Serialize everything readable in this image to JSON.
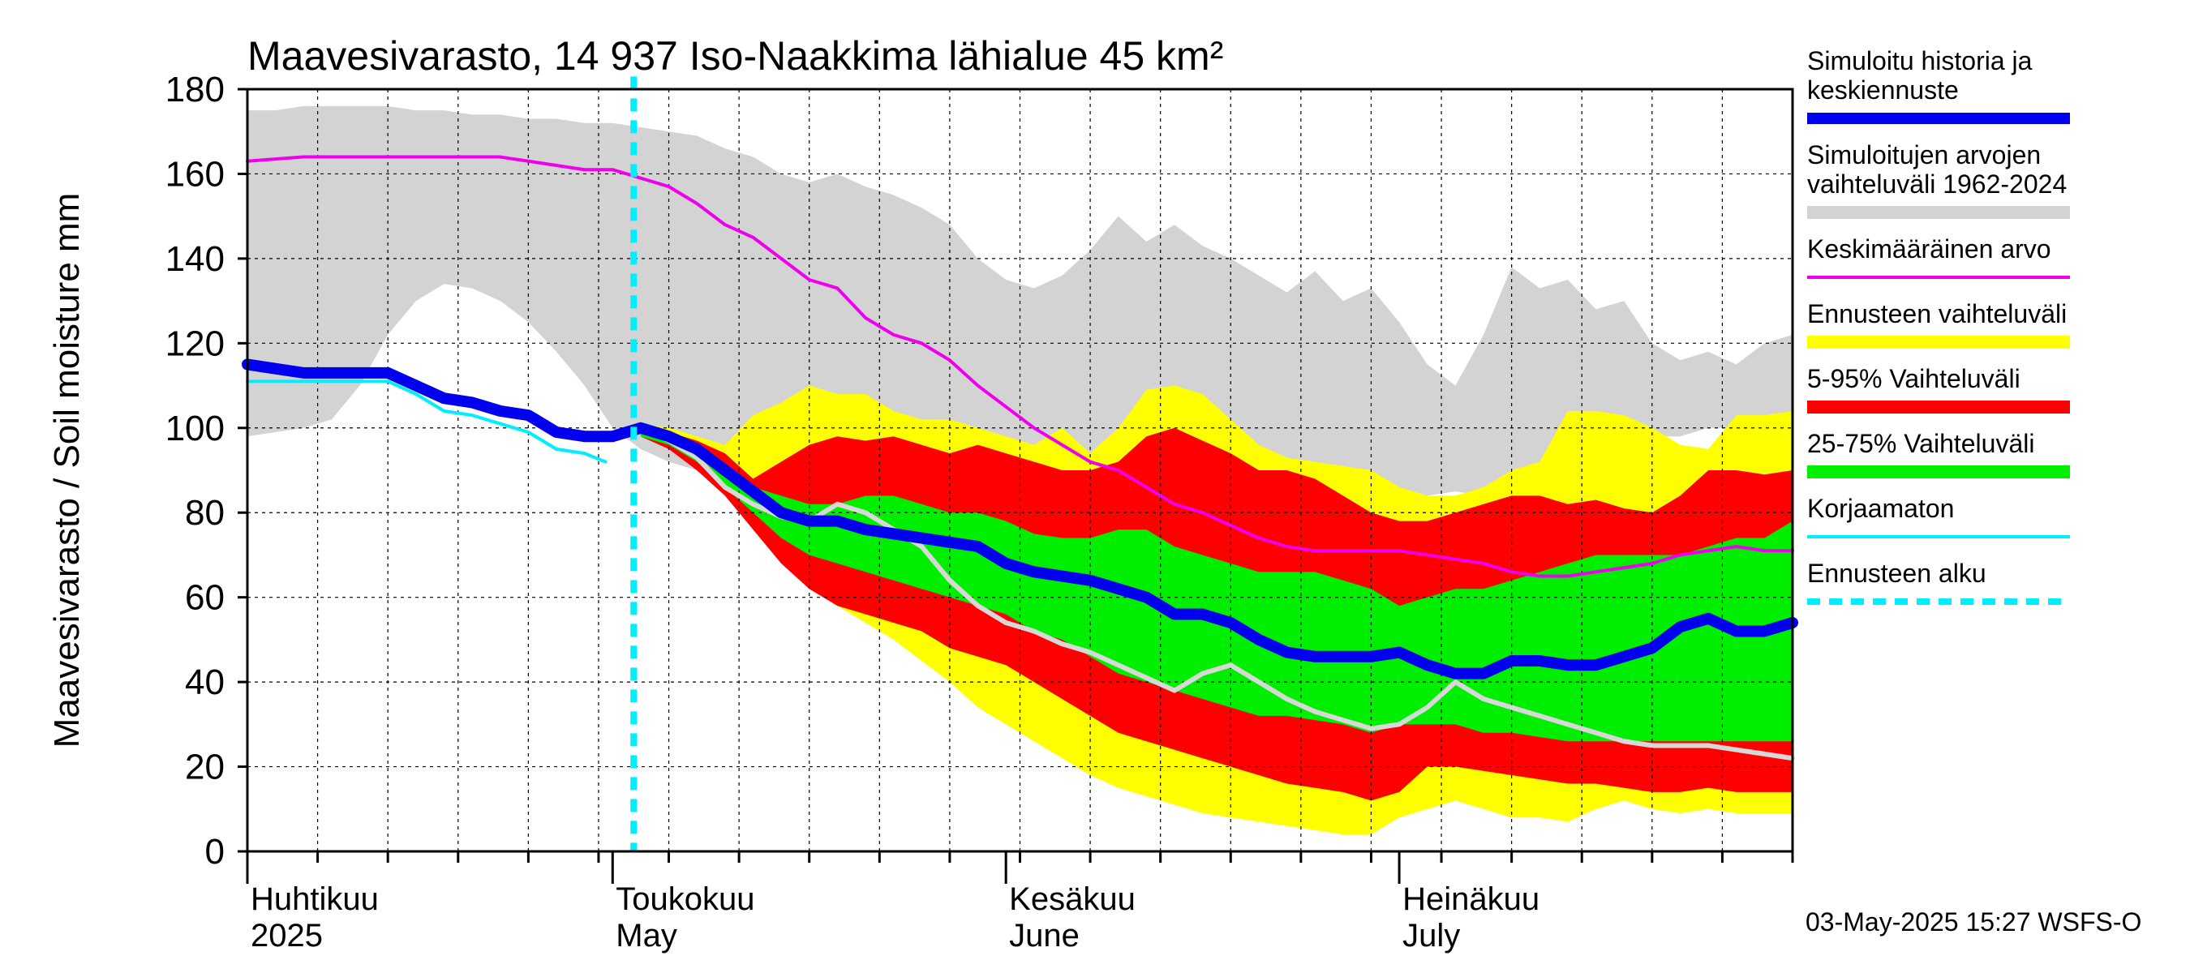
{
  "chart_data": {
    "type": "area",
    "title": "Maavesivarasto, 14 937 Iso-Naakkima lähialue 45 km²",
    "ylabel": "Maavesivarasto / Soil moisture   mm",
    "xlabel": "",
    "ylim": [
      0,
      180
    ],
    "xlim_days": [
      0,
      110
    ],
    "yticks": [
      "0",
      "20",
      "40",
      "60",
      "80",
      "100",
      "120",
      "140",
      "160",
      "180"
    ],
    "months": [
      {
        "fi": "Huhtikuu",
        "en": "2025",
        "day": 0
      },
      {
        "fi": "Toukokuu",
        "en": "May",
        "day": 26
      },
      {
        "fi": "Kesäkuu",
        "en": "June",
        "day": 54
      },
      {
        "fi": "Heinäkuu",
        "en": "July",
        "day": 82
      }
    ],
    "forecast_start_day": 27.5,
    "colors": {
      "history_range": "#d3d3d3",
      "forecast_range": "#ffff00",
      "p5_95": "#ff0000",
      "p25_75": "#00ee00",
      "simulated": "#0000ee",
      "mean": "#ee00ee",
      "uncorrected": "#00eeff",
      "forecast_start": "#00eeff",
      "gray_line": "#d8d8d8"
    },
    "series": {
      "history_range": {
        "x": [
          0,
          2,
          4,
          6,
          8,
          10,
          12,
          14,
          16,
          18,
          20,
          22,
          24,
          26,
          28,
          30,
          32,
          34,
          36,
          38,
          40,
          42,
          44,
          46,
          48,
          50,
          52,
          54,
          56,
          58,
          60,
          62,
          64,
          66,
          68,
          70,
          72,
          74,
          76,
          78,
          80,
          82,
          84,
          86,
          88,
          90,
          92,
          94,
          96,
          98,
          100,
          102,
          104,
          106,
          108,
          110
        ],
        "upper": [
          175,
          175,
          176,
          176,
          176,
          176,
          175,
          175,
          174,
          174,
          173,
          173,
          172,
          172,
          171,
          170,
          169,
          166,
          164,
          160,
          158,
          160,
          157,
          155,
          152,
          148,
          140,
          135,
          133,
          136,
          142,
          150,
          144,
          148,
          143,
          140,
          136,
          132,
          137,
          130,
          133,
          125,
          115,
          110,
          122,
          138,
          133,
          135,
          128,
          130,
          120,
          116,
          118,
          115,
          120,
          122
        ],
        "lower": [
          98,
          99,
          100,
          102,
          110,
          122,
          130,
          134,
          133,
          130,
          125,
          118,
          110,
          100,
          95,
          92,
          90,
          88,
          90,
          87,
          88,
          89,
          88,
          88,
          87,
          86,
          84,
          83,
          82,
          84,
          85,
          86,
          84,
          84,
          83,
          82,
          80,
          80,
          80,
          80,
          80,
          82,
          84,
          85,
          84,
          85,
          86,
          88,
          90,
          94,
          98,
          98,
          100,
          100,
          100,
          100
        ]
      },
      "forecast_range": {
        "x": [
          28,
          30,
          32,
          34,
          36,
          38,
          40,
          42,
          44,
          46,
          48,
          50,
          52,
          54,
          56,
          58,
          60,
          62,
          64,
          66,
          68,
          70,
          72,
          74,
          76,
          78,
          80,
          82,
          84,
          86,
          88,
          90,
          92,
          94,
          96,
          98,
          100,
          102,
          104,
          106,
          108,
          110
        ],
        "upper": [
          101,
          100,
          98,
          96,
          103,
          106,
          110,
          108,
          108,
          104,
          102,
          102,
          100,
          98,
          96,
          100,
          94,
          100,
          109,
          110,
          108,
          102,
          96,
          93,
          92,
          91,
          90,
          86,
          84,
          84,
          86,
          90,
          92,
          104,
          104,
          103,
          100,
          96,
          95,
          103,
          103,
          104
        ],
        "lower": [
          98,
          96,
          92,
          86,
          78,
          70,
          62,
          58,
          54,
          50,
          45,
          40,
          34,
          30,
          26,
          22,
          18,
          15,
          13,
          11,
          9,
          8,
          7,
          6,
          5,
          4,
          4,
          8,
          10,
          12,
          10,
          8,
          8,
          7,
          10,
          12,
          10,
          9,
          10,
          9,
          9,
          9
        ]
      },
      "p5_95": {
        "x": [
          28,
          30,
          32,
          34,
          36,
          38,
          40,
          42,
          44,
          46,
          48,
          50,
          52,
          54,
          56,
          58,
          60,
          62,
          64,
          66,
          68,
          70,
          72,
          74,
          76,
          78,
          80,
          82,
          84,
          86,
          88,
          90,
          92,
          94,
          96,
          98,
          100,
          102,
          104,
          106,
          108,
          110
        ],
        "upper": [
          100,
          99,
          97,
          94,
          88,
          92,
          96,
          98,
          97,
          98,
          96,
          94,
          96,
          94,
          92,
          90,
          90,
          92,
          98,
          100,
          97,
          94,
          90,
          90,
          88,
          84,
          80,
          78,
          78,
          80,
          82,
          84,
          84,
          82,
          83,
          81,
          80,
          84,
          90,
          90,
          89,
          90
        ],
        "lower": [
          98,
          95,
          90,
          84,
          76,
          68,
          62,
          58,
          56,
          54,
          52,
          48,
          46,
          44,
          40,
          36,
          32,
          28,
          26,
          24,
          22,
          20,
          18,
          16,
          15,
          14,
          12,
          14,
          20,
          20,
          19,
          18,
          17,
          16,
          16,
          15,
          14,
          14,
          15,
          14,
          14,
          14
        ]
      },
      "p25_75": {
        "x": [
          28,
          30,
          32,
          34,
          36,
          38,
          40,
          42,
          44,
          46,
          48,
          50,
          52,
          54,
          56,
          58,
          60,
          62,
          64,
          66,
          68,
          70,
          72,
          74,
          76,
          78,
          80,
          82,
          84,
          86,
          88,
          90,
          92,
          94,
          96,
          98,
          100,
          102,
          104,
          106,
          108,
          110
        ],
        "upper": [
          100,
          98,
          95,
          90,
          86,
          84,
          82,
          82,
          84,
          84,
          82,
          80,
          80,
          78,
          75,
          74,
          74,
          76,
          76,
          72,
          70,
          68,
          66,
          66,
          66,
          64,
          62,
          58,
          60,
          62,
          62,
          64,
          66,
          68,
          70,
          70,
          70,
          70,
          72,
          74,
          74,
          78
        ],
        "lower": [
          98,
          96,
          92,
          86,
          80,
          74,
          70,
          68,
          66,
          64,
          62,
          60,
          58,
          56,
          52,
          50,
          46,
          42,
          40,
          38,
          36,
          34,
          32,
          32,
          31,
          30,
          28,
          30,
          30,
          30,
          28,
          28,
          27,
          26,
          26,
          26,
          26,
          26,
          26,
          26,
          26,
          26
        ]
      },
      "simulated": {
        "x": [
          0,
          2,
          4,
          6,
          8,
          10,
          12,
          14,
          16,
          18,
          20,
          22,
          24,
          26,
          28,
          30,
          32,
          34,
          36,
          38,
          40,
          42,
          44,
          46,
          48,
          50,
          52,
          54,
          56,
          58,
          60,
          62,
          64,
          66,
          68,
          70,
          72,
          74,
          76,
          78,
          80,
          82,
          84,
          86,
          88,
          90,
          92,
          94,
          96,
          98,
          100,
          102,
          104,
          106,
          108,
          110
        ],
        "values": [
          115,
          114,
          113,
          113,
          113,
          113,
          110,
          107,
          106,
          104,
          103,
          99,
          98,
          98,
          100,
          98,
          95,
          90,
          85,
          80,
          78,
          78,
          76,
          75,
          74,
          73,
          72,
          68,
          66,
          65,
          64,
          62,
          60,
          56,
          56,
          54,
          50,
          47,
          46,
          46,
          46,
          47,
          44,
          42,
          42,
          45,
          45,
          44,
          44,
          46,
          48,
          53,
          55,
          52,
          52,
          54
        ]
      },
      "mean": {
        "x": [
          0,
          2,
          4,
          6,
          8,
          10,
          12,
          14,
          16,
          18,
          20,
          22,
          24,
          26,
          28,
          30,
          32,
          34,
          36,
          38,
          40,
          42,
          44,
          46,
          48,
          50,
          52,
          54,
          56,
          58,
          60,
          62,
          64,
          66,
          68,
          70,
          72,
          74,
          76,
          78,
          80,
          82,
          84,
          86,
          88,
          90,
          92,
          94,
          96,
          98,
          100,
          102,
          104,
          106,
          108,
          110
        ],
        "values": [
          163,
          163.5,
          164,
          164,
          164,
          164,
          164,
          164,
          164,
          164,
          163,
          162,
          161,
          161,
          159,
          157,
          153,
          148,
          145,
          140,
          135,
          133,
          126,
          122,
          120,
          116,
          110,
          105,
          100,
          96,
          92,
          90,
          86,
          82,
          80,
          77,
          74,
          72,
          71,
          71,
          71,
          71,
          70,
          69,
          68,
          66,
          65,
          65,
          66,
          67,
          68,
          70,
          71,
          72,
          71,
          71
        ]
      },
      "uncorrected": {
        "x": [
          0,
          2,
          4,
          6,
          8,
          10,
          12,
          14,
          16,
          18,
          20,
          22,
          24,
          25.5
        ],
        "values": [
          111,
          111,
          111,
          111,
          111,
          111,
          108,
          104,
          103,
          101,
          99,
          95,
          94,
          92
        ]
      },
      "gray_line": {
        "x": [
          28,
          30,
          32,
          34,
          36,
          38,
          40,
          42,
          44,
          46,
          48,
          50,
          52,
          54,
          56,
          58,
          60,
          62,
          64,
          66,
          68,
          70,
          72,
          74,
          76,
          78,
          80,
          82,
          84,
          86,
          88,
          90,
          92,
          94,
          96,
          98,
          100,
          102,
          104,
          106,
          108,
          110
        ],
        "values": [
          100,
          97,
          93,
          86,
          82,
          79,
          78,
          82,
          80,
          76,
          72,
          64,
          58,
          54,
          52,
          49,
          47,
          44,
          41,
          38,
          42,
          44,
          40,
          36,
          33,
          31,
          29,
          30,
          34,
          40,
          36,
          34,
          32,
          30,
          28,
          26,
          25,
          25,
          25,
          24,
          23,
          22
        ]
      }
    },
    "legend": [
      {
        "label": "Simuloitu historia ja keskiennuste",
        "lines": [
          "Simuloitu historia ja",
          "keskiennuste"
        ],
        "key": "simulated",
        "style": "thick"
      },
      {
        "label": "Simuloitujen arvojen vaihteluväli 1962-2024",
        "lines": [
          "Simuloitujen arvojen",
          "vaihteluväli 1962-2024"
        ],
        "key": "history_range",
        "style": "band"
      },
      {
        "label": "Keskimääräinen arvo",
        "lines": [
          "Keskimääräinen arvo"
        ],
        "key": "mean",
        "style": "thin"
      },
      {
        "label": "Ennusteen vaihteluväli",
        "lines": [
          "Ennusteen vaihteluväli"
        ],
        "key": "forecast_range",
        "style": "band"
      },
      {
        "label": "5-95% Vaihteluväli",
        "lines": [
          "5-95% Vaihteluväli"
        ],
        "key": "p5_95",
        "style": "band"
      },
      {
        "label": "25-75% Vaihteluväli",
        "lines": [
          "25-75% Vaihteluväli"
        ],
        "key": "p25_75",
        "style": "band"
      },
      {
        "label": "Korjaamaton",
        "lines": [
          "Korjaamaton"
        ],
        "key": "uncorrected",
        "style": "thin"
      },
      {
        "label": "Ennusteen alku",
        "lines": [
          "Ennusteen alku"
        ],
        "key": "forecast_start",
        "style": "dashed"
      }
    ],
    "footer": "03-May-2025 15:27 WSFS-O"
  }
}
